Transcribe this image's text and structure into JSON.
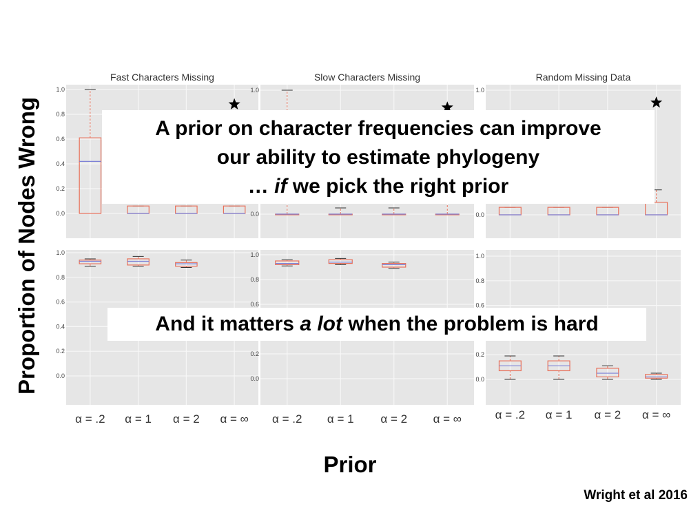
{
  "slide": {
    "ylabel": "Proportion of Nodes Wrong",
    "xlabel": "Prior",
    "citation": "Wright et al 2016",
    "callout_top": {
      "line1": "A prior on character frequencies can improve",
      "line2": "our ability to estimate phylogeny",
      "line3_pre": "… ",
      "line3_em": "if",
      "line3_post": " we pick the right prior"
    },
    "callout_bottom": {
      "pre": "And it matters ",
      "em": "a lot",
      "post": " when the problem is hard"
    }
  },
  "chart_data": [
    {
      "type": "box",
      "title": "Fast Characters Missing",
      "categories": [
        "α = .2",
        "α = 1",
        "α = 2",
        "α = ∞"
      ],
      "ylim": [
        0,
        1
      ],
      "yticks": [
        "0.0",
        "0.2",
        "0.4",
        "0.6",
        "0.8",
        "1.0"
      ],
      "boxes": [
        {
          "q1": 0.0,
          "median": 0.42,
          "q3": 0.61,
          "wlo": 0.0,
          "whi": 1.0
        },
        {
          "q1": 0.0,
          "median": 0.0,
          "q3": 0.06,
          "wlo": 0.0,
          "whi": 0.06
        },
        {
          "q1": 0.0,
          "median": 0.0,
          "q3": 0.06,
          "wlo": 0.0,
          "whi": 0.06
        },
        {
          "q1": 0.0,
          "median": 0.0,
          "q3": 0.06,
          "wlo": 0.0,
          "whi": 0.06
        }
      ],
      "marker": {
        "category": "α = ∞",
        "y": 0.88,
        "symbol": "star"
      }
    },
    {
      "type": "box",
      "title": "Slow Characters Missing",
      "categories": [
        "α = .2",
        "α = 1",
        "α = 2",
        "α = ∞"
      ],
      "ylim": [
        0,
        1
      ],
      "yticks": [
        "0.0",
        "1.0"
      ],
      "boxes": [
        {
          "q1": 0.0,
          "median": 0.0,
          "q3": 0.0,
          "wlo": 0.0,
          "whi": 1.0
        },
        {
          "q1": 0.0,
          "median": 0.0,
          "q3": 0.0,
          "wlo": 0.0,
          "whi": 0.05
        },
        {
          "q1": 0.0,
          "median": 0.0,
          "q3": 0.0,
          "wlo": 0.0,
          "whi": 0.05
        },
        {
          "q1": 0.0,
          "median": 0.0,
          "q3": 0.0,
          "wlo": 0.0,
          "whi": 0.1
        }
      ],
      "marker": {
        "category": "α = ∞",
        "y": 0.86,
        "symbol": "star"
      }
    },
    {
      "type": "box",
      "title": "Random Missing Data",
      "categories": [
        "α = .2",
        "α = 1",
        "α = 2",
        "α = ∞"
      ],
      "ylim": [
        0,
        1
      ],
      "yticks": [
        "0.0",
        "1.0"
      ],
      "boxes": [
        {
          "q1": 0.0,
          "median": 0.0,
          "q3": 0.06,
          "wlo": 0.0,
          "whi": 0.06
        },
        {
          "q1": 0.0,
          "median": 0.0,
          "q3": 0.06,
          "wlo": 0.0,
          "whi": 0.06
        },
        {
          "q1": 0.0,
          "median": 0.0,
          "q3": 0.06,
          "wlo": 0.0,
          "whi": 0.06
        },
        {
          "q1": 0.0,
          "median": 0.0,
          "q3": 0.1,
          "wlo": 0.0,
          "whi": 0.2
        }
      ],
      "marker": {
        "category": "α = ∞",
        "y": 0.9,
        "symbol": "star"
      }
    },
    {
      "type": "box",
      "title": "",
      "categories": [
        "α = .2",
        "α = 1",
        "α = 2",
        "α = ∞"
      ],
      "ylim": [
        0,
        1
      ],
      "yticks": [
        "0.0",
        "0.2",
        "0.4",
        "0.6",
        "0.8",
        "1.0"
      ],
      "boxes": [
        {
          "q1": 0.91,
          "median": 0.93,
          "q3": 0.94,
          "wlo": 0.89,
          "whi": 0.95
        },
        {
          "q1": 0.9,
          "median": 0.93,
          "q3": 0.95,
          "wlo": 0.89,
          "whi": 0.97
        },
        {
          "q1": 0.89,
          "median": 0.91,
          "q3": 0.92,
          "wlo": 0.88,
          "whi": 0.94
        },
        null
      ]
    },
    {
      "type": "box",
      "title": "",
      "categories": [
        "α = .2",
        "α = 1",
        "α = 2",
        "α = ∞"
      ],
      "ylim": [
        0,
        1
      ],
      "yticks": [
        "0.0",
        "0.2",
        "0.6",
        "0.8",
        "1.0"
      ],
      "boxes": [
        {
          "q1": 0.92,
          "median": 0.93,
          "q3": 0.95,
          "wlo": 0.91,
          "whi": 0.96
        },
        {
          "q1": 0.93,
          "median": 0.94,
          "q3": 0.96,
          "wlo": 0.92,
          "whi": 0.97
        },
        {
          "q1": 0.9,
          "median": 0.92,
          "q3": 0.93,
          "wlo": 0.89,
          "whi": 0.94
        },
        null
      ]
    },
    {
      "type": "box",
      "title": "",
      "categories": [
        "α = .2",
        "α = 1",
        "α = 2",
        "α = ∞"
      ],
      "ylim": [
        0,
        1
      ],
      "yticks": [
        "0.0",
        "0.2",
        "0.6",
        "0.8",
        "1.0"
      ],
      "boxes": [
        {
          "q1": 0.07,
          "median": 0.11,
          "q3": 0.15,
          "wlo": 0.0,
          "whi": 0.19
        },
        {
          "q1": 0.07,
          "median": 0.11,
          "q3": 0.15,
          "wlo": 0.0,
          "whi": 0.19
        },
        {
          "q1": 0.02,
          "median": 0.05,
          "q3": 0.09,
          "wlo": 0.0,
          "whi": 0.11
        },
        {
          "q1": 0.01,
          "median": 0.02,
          "q3": 0.04,
          "wlo": 0.0,
          "whi": 0.05
        }
      ]
    }
  ],
  "colors": {
    "panel_bg": "#e6e6e6",
    "grid": "#f7f7f7",
    "box": "#e8705a",
    "median": "#7b7fd6",
    "cap": "#333333",
    "star": "#000000"
  }
}
